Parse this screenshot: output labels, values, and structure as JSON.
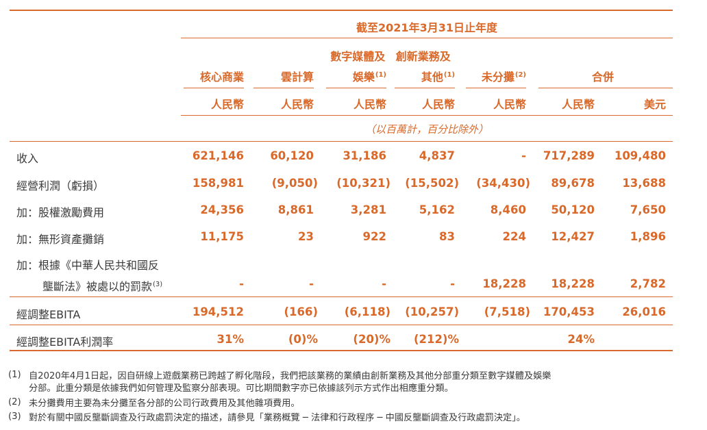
{
  "header": {
    "period": "截至2021年3月31日止年度",
    "group_line1": "數字媒體及",
    "group_line1b": "創新業務及",
    "columns": [
      {
        "label": "核心商業",
        "sup": ""
      },
      {
        "label": "雲計算",
        "sup": ""
      },
      {
        "label": "娛樂",
        "sup": "(1)"
      },
      {
        "label": "其他",
        "sup": "(1)"
      },
      {
        "label": "未分攤",
        "sup": "(2)"
      },
      {
        "label": "合併",
        "sup": ""
      }
    ],
    "currencies": [
      "人民幣",
      "人民幣",
      "人民幣",
      "人民幣",
      "人民幣",
      "人民幣",
      "美元"
    ],
    "unit_note": "（以百萬計，百分比除外）"
  },
  "rows": [
    {
      "label": "收入",
      "sup": "",
      "values": [
        "621,146",
        "60,120",
        "31,186",
        "4,837",
        "-",
        "717,289",
        "109,480"
      ]
    },
    {
      "label": "經營利潤（虧損）",
      "sup": "",
      "values": [
        "158,981",
        "(9,050)",
        "(10,321)",
        "(15,502)",
        "(34,430)",
        "89,678",
        "13,688"
      ]
    },
    {
      "label": "加：股權激勵費用",
      "sup": "",
      "values": [
        "24,356",
        "8,861",
        "3,281",
        "5,162",
        "8,460",
        "50,120",
        "7,650"
      ]
    },
    {
      "label": "加：無形資產攤銷",
      "sup": "",
      "values": [
        "11,175",
        "23",
        "922",
        "83",
        "224",
        "12,427",
        "1,896"
      ]
    },
    {
      "label": "加：根據《中華人民共和國反",
      "label2": "壟斷法》被處以的罰款",
      "sup": "(3)",
      "values": [
        "-",
        "-",
        "-",
        "-",
        "18,228",
        "18,228",
        "2,782"
      ]
    },
    {
      "label": "經調整EBITA",
      "sup": "",
      "values": [
        "194,512",
        "(166)",
        "(6,118)",
        "(10,257)",
        "(7,518)",
        "170,453",
        "26,016"
      ]
    },
    {
      "label": "經調整EBITA利潤率",
      "sup": "",
      "values": [
        "31%",
        "(0)%",
        "(20)%",
        "(212)%",
        "",
        "24%",
        ""
      ]
    }
  ],
  "notes": [
    {
      "idx": "(1)",
      "lines": [
        "自2020年4月1日起，因自研線上遊戲業務已跨越了孵化階段，我們把該業務的業績由創新業務及其他分部重分類至數字媒體及娛樂",
        "分部。此重分類是依據我們如何管理及監察分部表現。可比期間數字亦已依據該列示方式作出相應重分類。"
      ]
    },
    {
      "idx": "(2)",
      "lines": [
        "未分攤費用主要為未分攤至各分部的公司行政費用及其他雜項費用。"
      ]
    },
    {
      "idx": "(3)",
      "lines": [
        "對於有關中國反壟斷調查及行政處罰決定的描述，請參見「業務概覽 ─ 法律和行政程序 ─ 中國反壟斷調查及行政處罰決定」。"
      ]
    }
  ],
  "colors": {
    "accent": "#d8692a",
    "rule": "#d8692a",
    "text": "#3a3a3a"
  }
}
